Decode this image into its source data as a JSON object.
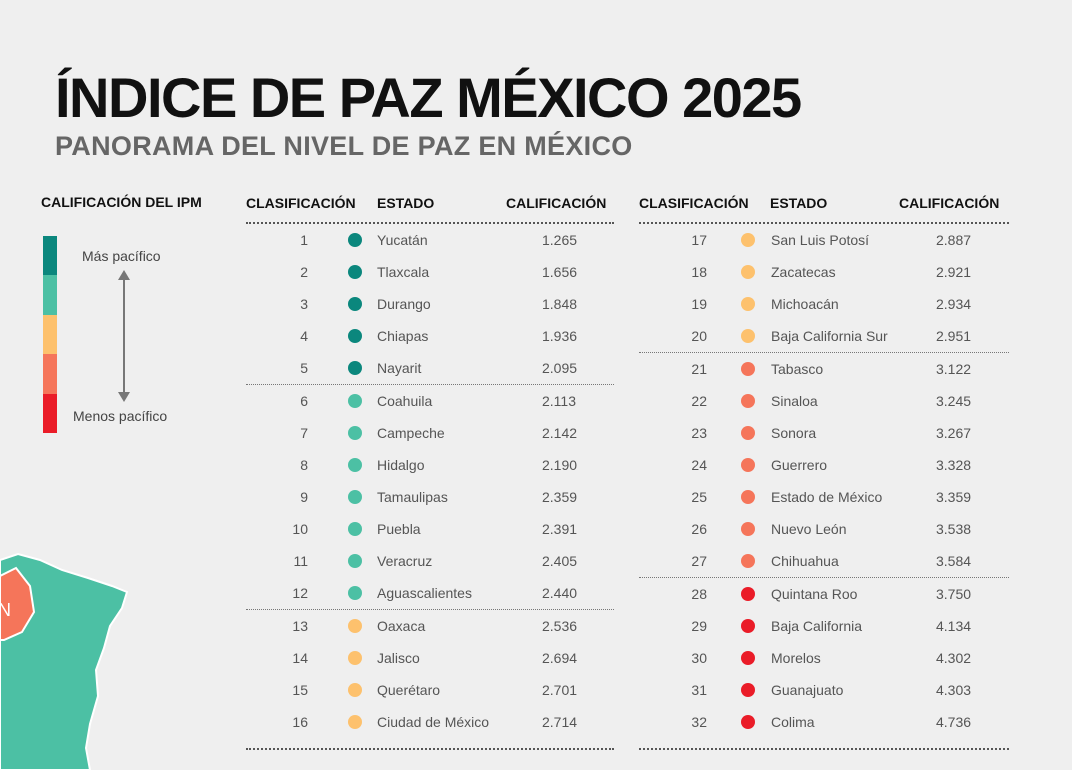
{
  "header": {
    "title": "ÍNDICE DE PAZ MÉXICO 2025",
    "subtitle": "PANORAMA DEL NIVEL DE PAZ EN MÉXICO"
  },
  "legend": {
    "title": "CALIFICACIÓN DEL IPM",
    "top_label": "Más pacífico",
    "bottom_label": "Menos pacífico",
    "colors": [
      "#0b877d",
      "#4cc0a4",
      "#fdc16d",
      "#f5755a",
      "#ea1c28"
    ]
  },
  "map": {
    "visible_letter": "N"
  },
  "columns": {
    "rank": "CLASIFICACIÓN",
    "state": "ESTADO",
    "score": "CALIFICACIÓN"
  },
  "levels": {
    "1": "#0b877d",
    "2": "#4cc0a4",
    "3": "#fdc16d",
    "4": "#f5755a",
    "5": "#ea1c28"
  },
  "table_left": [
    {
      "rank": "1",
      "state": "Yucatán",
      "score": "1.265",
      "level": 1
    },
    {
      "rank": "2",
      "state": "Tlaxcala",
      "score": "1.656",
      "level": 1
    },
    {
      "rank": "3",
      "state": "Durango",
      "score": "1.848",
      "level": 1
    },
    {
      "rank": "4",
      "state": "Chiapas",
      "score": "1.936",
      "level": 1
    },
    {
      "rank": "5",
      "state": "Nayarit",
      "score": "2.095",
      "level": 1
    },
    {
      "rank": "6",
      "state": "Coahuila",
      "score": "2.113",
      "level": 2
    },
    {
      "rank": "7",
      "state": "Campeche",
      "score": "2.142",
      "level": 2
    },
    {
      "rank": "8",
      "state": "Hidalgo",
      "score": "2.190",
      "level": 2
    },
    {
      "rank": "9",
      "state": "Tamaulipas",
      "score": "2.359",
      "level": 2
    },
    {
      "rank": "10",
      "state": "Puebla",
      "score": "2.391",
      "level": 2
    },
    {
      "rank": "11",
      "state": "Veracruz",
      "score": "2.405",
      "level": 2
    },
    {
      "rank": "12",
      "state": "Aguascalientes",
      "score": "2.440",
      "level": 2
    },
    {
      "rank": "13",
      "state": "Oaxaca",
      "score": "2.536",
      "level": 3
    },
    {
      "rank": "14",
      "state": "Jalisco",
      "score": "2.694",
      "level": 3
    },
    {
      "rank": "15",
      "state": "Querétaro",
      "score": "2.701",
      "level": 3
    },
    {
      "rank": "16",
      "state": "Ciudad de México",
      "score": "2.714",
      "level": 3
    }
  ],
  "table_right": [
    {
      "rank": "17",
      "state": "San Luis Potosí",
      "score": "2.887",
      "level": 3
    },
    {
      "rank": "18",
      "state": "Zacatecas",
      "score": "2.921",
      "level": 3
    },
    {
      "rank": "19",
      "state": "Michoacán",
      "score": "2.934",
      "level": 3
    },
    {
      "rank": "20",
      "state": "Baja California Sur",
      "score": "2.951",
      "level": 3
    },
    {
      "rank": "21",
      "state": "Tabasco",
      "score": "3.122",
      "level": 4
    },
    {
      "rank": "22",
      "state": "Sinaloa",
      "score": "3.245",
      "level": 4
    },
    {
      "rank": "23",
      "state": "Sonora",
      "score": "3.267",
      "level": 4
    },
    {
      "rank": "24",
      "state": "Guerrero",
      "score": "3.328",
      "level": 4
    },
    {
      "rank": "25",
      "state": "Estado de México",
      "score": "3.359",
      "level": 4
    },
    {
      "rank": "26",
      "state": "Nuevo León",
      "score": "3.538",
      "level": 4
    },
    {
      "rank": "27",
      "state": "Chihuahua",
      "score": "3.584",
      "level": 4
    },
    {
      "rank": "28",
      "state": "Quintana Roo",
      "score": "3.750",
      "level": 5
    },
    {
      "rank": "29",
      "state": "Baja California",
      "score": "4.134",
      "level": 5
    },
    {
      "rank": "30",
      "state": "Morelos",
      "score": "4.302",
      "level": 5
    },
    {
      "rank": "31",
      "state": "Guanajuato",
      "score": "4.303",
      "level": 5
    },
    {
      "rank": "32",
      "state": "Colima",
      "score": "4.736",
      "level": 5
    }
  ]
}
